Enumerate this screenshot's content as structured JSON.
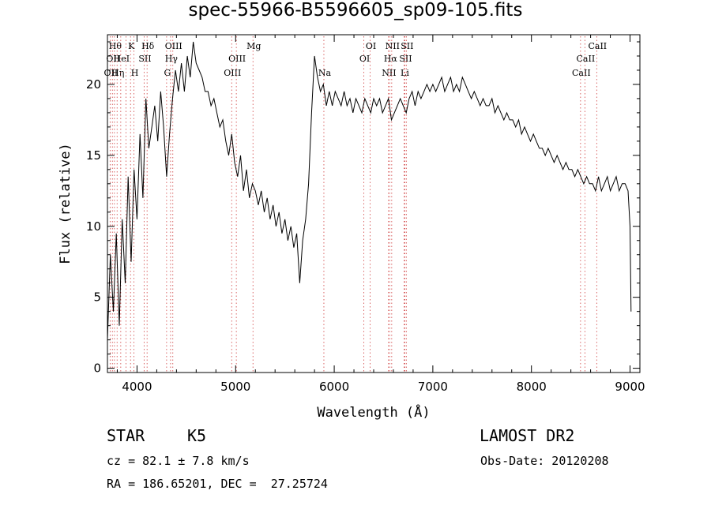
{
  "title": "spec-55966-B5596605_sp09-105.fits",
  "info": {
    "class_label": "STAR",
    "subclass": "K5",
    "survey": "LAMOST DR2",
    "cz": "cz = 82.1 ± 7.8 km/s",
    "obs_date": "Obs-Date: 20120208",
    "radec": "RA = 186.65201, DEC =  27.25724"
  },
  "chart_data": {
    "type": "line",
    "xlabel": "Wavelength (Å)",
    "ylabel": "Flux (relative)",
    "xlim": [
      3700,
      9100
    ],
    "ylim": [
      -0.3,
      23.5
    ],
    "xticks": [
      4000,
      5000,
      6000,
      7000,
      8000,
      9000
    ],
    "yticks": [
      0,
      5,
      10,
      15,
      20
    ],
    "grid": false,
    "series": [
      {
        "x": [
          3700,
          3730,
          3760,
          3790,
          3820,
          3850,
          3880,
          3910,
          3940,
          3970,
          4000,
          4030,
          4060,
          4090,
          4120,
          4150,
          4180,
          4210,
          4240,
          4270,
          4300,
          4330,
          4360,
          4390,
          4420,
          4450,
          4480,
          4510,
          4540,
          4570,
          4600,
          4630,
          4660,
          4690,
          4720,
          4750,
          4780,
          4810,
          4840,
          4870,
          4900,
          4930,
          4960,
          4990,
          5020,
          5050,
          5080,
          5110,
          5140,
          5170,
          5200,
          5230,
          5260,
          5290,
          5320,
          5350,
          5380,
          5410,
          5440,
          5470,
          5500,
          5530,
          5560,
          5590,
          5620,
          5650,
          5680,
          5710,
          5740,
          5770,
          5800,
          5830,
          5860,
          5890,
          5920,
          5950,
          5980,
          6010,
          6040,
          6070,
          6100,
          6130,
          6160,
          6190,
          6220,
          6250,
          6280,
          6310,
          6340,
          6370,
          6400,
          6430,
          6460,
          6490,
          6520,
          6550,
          6580,
          6610,
          6640,
          6670,
          6700,
          6730,
          6760,
          6790,
          6820,
          6850,
          6880,
          6910,
          6940,
          6970,
          7000,
          7030,
          7060,
          7090,
          7120,
          7150,
          7180,
          7210,
          7240,
          7270,
          7300,
          7330,
          7360,
          7390,
          7420,
          7450,
          7480,
          7510,
          7540,
          7570,
          7600,
          7630,
          7660,
          7690,
          7720,
          7750,
          7780,
          7810,
          7840,
          7870,
          7900,
          7930,
          7960,
          7990,
          8020,
          8050,
          8080,
          8110,
          8140,
          8170,
          8200,
          8230,
          8260,
          8290,
          8320,
          8350,
          8380,
          8410,
          8440,
          8470,
          8500,
          8530,
          8560,
          8590,
          8620,
          8650,
          8680,
          8710,
          8740,
          8770,
          8800,
          8830,
          8860,
          8890,
          8920,
          8950,
          8980,
          9000,
          9010
        ],
        "y": [
          2.0,
          8.0,
          4.0,
          9.5,
          3.0,
          10.5,
          6.0,
          13.5,
          7.5,
          14.0,
          10.5,
          16.5,
          12.0,
          19.0,
          15.5,
          17.0,
          18.5,
          16.0,
          19.5,
          17.0,
          13.5,
          16.5,
          19.0,
          21.0,
          19.5,
          21.5,
          19.5,
          22.0,
          20.5,
          23.0,
          21.5,
          21.0,
          20.5,
          19.5,
          19.5,
          18.5,
          19.0,
          18.0,
          17.0,
          17.5,
          16.0,
          15.0,
          16.5,
          14.5,
          13.5,
          15.0,
          12.5,
          14.0,
          12.0,
          13.0,
          12.5,
          11.5,
          12.5,
          11.0,
          12.0,
          10.5,
          11.5,
          10.0,
          11.0,
          9.5,
          10.5,
          9.0,
          10.0,
          8.5,
          9.5,
          6.0,
          9.0,
          10.5,
          13.0,
          18.0,
          22.0,
          20.5,
          19.5,
          20.0,
          18.5,
          19.5,
          18.5,
          19.5,
          19.0,
          18.5,
          19.5,
          18.5,
          19.0,
          18.0,
          19.0,
          18.5,
          18.0,
          19.0,
          18.5,
          18.0,
          19.0,
          18.5,
          19.0,
          18.0,
          18.5,
          19.0,
          17.5,
          18.0,
          18.5,
          19.0,
          18.5,
          18.0,
          19.0,
          19.5,
          18.5,
          19.5,
          19.0,
          19.5,
          20.0,
          19.5,
          20.0,
          19.5,
          20.0,
          20.5,
          19.5,
          20.0,
          20.5,
          19.5,
          20.0,
          19.5,
          20.5,
          20.0,
          19.5,
          19.0,
          19.5,
          19.0,
          18.5,
          19.0,
          18.5,
          18.5,
          19.0,
          18.0,
          18.5,
          18.0,
          17.5,
          18.0,
          17.5,
          17.5,
          17.0,
          17.5,
          16.5,
          17.0,
          16.5,
          16.0,
          16.5,
          16.0,
          15.5,
          15.5,
          15.0,
          15.5,
          15.0,
          14.5,
          15.0,
          14.5,
          14.0,
          14.5,
          14.0,
          14.0,
          13.5,
          14.0,
          13.5,
          13.0,
          13.5,
          13.0,
          13.0,
          12.5,
          13.5,
          12.5,
          13.0,
          13.5,
          12.5,
          13.0,
          13.5,
          12.5,
          13.0,
          13.0,
          12.5,
          10.0,
          4.0
        ]
      }
    ],
    "line_groups": [
      {
        "color": "#000000",
        "lines": [
          {
            "x": 3727,
            "labels": [
              "OII"
            ],
            "row": 2
          },
          {
            "x": 3750,
            "labels": [
              "OII"
            ],
            "row": 1
          },
          {
            "x": 3771,
            "labels": [
              "Hθ"
            ],
            "row": 0
          },
          {
            "x": 3798,
            "labels": [
              "Hη"
            ],
            "row": 2
          },
          {
            "x": 3835,
            "labels": [
              "HeI"
            ],
            "row": 1
          },
          {
            "x": 3889,
            "labels": [],
            "row": 0
          },
          {
            "x": 3934,
            "labels": [
              "K"
            ],
            "row": 0
          },
          {
            "x": 3969,
            "labels": [
              "H"
            ],
            "row": 2
          },
          {
            "x": 4072,
            "labels": [
              "SII"
            ],
            "row": 1
          },
          {
            "x": 4102,
            "labels": [
              "Hδ"
            ],
            "row": 0
          },
          {
            "x": 4300,
            "labels": [
              "G"
            ],
            "row": 2
          },
          {
            "x": 4340,
            "labels": [
              "Hγ"
            ],
            "row": 1
          },
          {
            "x": 4363,
            "labels": [
              "OIII"
            ],
            "row": 0
          },
          {
            "x": 4960,
            "labels": [
              "OIII"
            ],
            "row": 2
          },
          {
            "x": 5007,
            "labels": [
              "OIII"
            ],
            "row": 1
          },
          {
            "x": 5176,
            "labels": [
              "Mg"
            ],
            "row": 0
          },
          {
            "x": 5895,
            "labels": [
              "Na"
            ],
            "row": 2
          },
          {
            "x": 6300,
            "labels": [
              "OI"
            ],
            "row": 1
          },
          {
            "x": 6364,
            "labels": [
              "OI"
            ],
            "row": 0
          },
          {
            "x": 6548,
            "labels": [
              "NII"
            ],
            "row": 2
          },
          {
            "x": 6563,
            "labels": [
              "Hα"
            ],
            "row": 1
          },
          {
            "x": 6583,
            "labels": [
              "NII"
            ],
            "row": 0
          },
          {
            "x": 6708,
            "labels": [
              "Li"
            ],
            "row": 2
          },
          {
            "x": 6716,
            "labels": [
              "SII"
            ],
            "row": 1
          },
          {
            "x": 6731,
            "labels": [
              "SII"
            ],
            "row": 0
          },
          {
            "x": 8498,
            "labels": [
              "CaII"
            ],
            "row": 2
          },
          {
            "x": 8542,
            "labels": [
              "CaII"
            ],
            "row": 1
          },
          {
            "x": 8662,
            "labels": [
              "CaII"
            ],
            "row": 0
          }
        ]
      }
    ]
  }
}
